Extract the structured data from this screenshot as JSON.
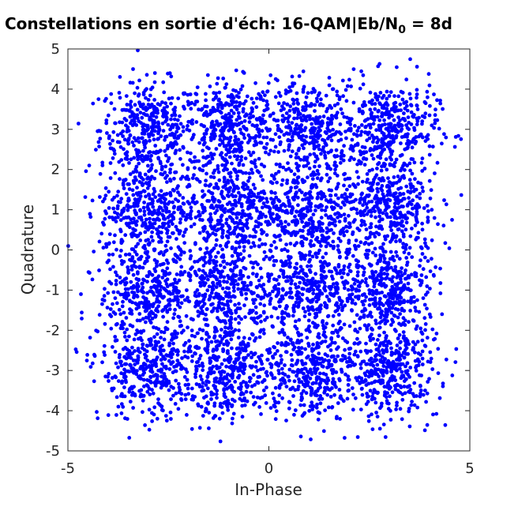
{
  "title": {
    "main": "Constellations en sortie d'éch: 16-QAM|Eb/N",
    "sub": "0",
    "tail": " = 8d"
  },
  "chart_data": {
    "type": "scatter",
    "title": "Constellations en sortie d'éch: 16-QAM|Eb/N0 = 8d",
    "xlabel": "In-Phase",
    "ylabel": "Quadrature",
    "xlim": [
      -5,
      5
    ],
    "ylim": [
      -5,
      5
    ],
    "xticks": [
      "-5",
      "0",
      "5"
    ],
    "yticks": [
      "5",
      "4",
      "3",
      "2",
      "1",
      "0",
      "-1",
      "-2",
      "-3",
      "-4",
      "-5"
    ],
    "grid": false,
    "series": [
      {
        "marker_color": "#0000ff",
        "constellation_points": [
          {
            "x": -3,
            "y": 3
          },
          {
            "x": -1,
            "y": 3
          },
          {
            "x": 1,
            "y": 3
          },
          {
            "x": 3,
            "y": 3
          },
          {
            "x": -3,
            "y": 1
          },
          {
            "x": -1,
            "y": 1
          },
          {
            "x": 1,
            "y": 1
          },
          {
            "x": 3,
            "y": 1
          },
          {
            "x": -3,
            "y": -1
          },
          {
            "x": -1,
            "y": -1
          },
          {
            "x": 1,
            "y": -1
          },
          {
            "x": 3,
            "y": -1
          },
          {
            "x": -3,
            "y": -3
          },
          {
            "x": -1,
            "y": -3
          },
          {
            "x": 1,
            "y": -3
          },
          {
            "x": 3,
            "y": -3
          }
        ],
        "noise_std": 0.6
      }
    ]
  }
}
